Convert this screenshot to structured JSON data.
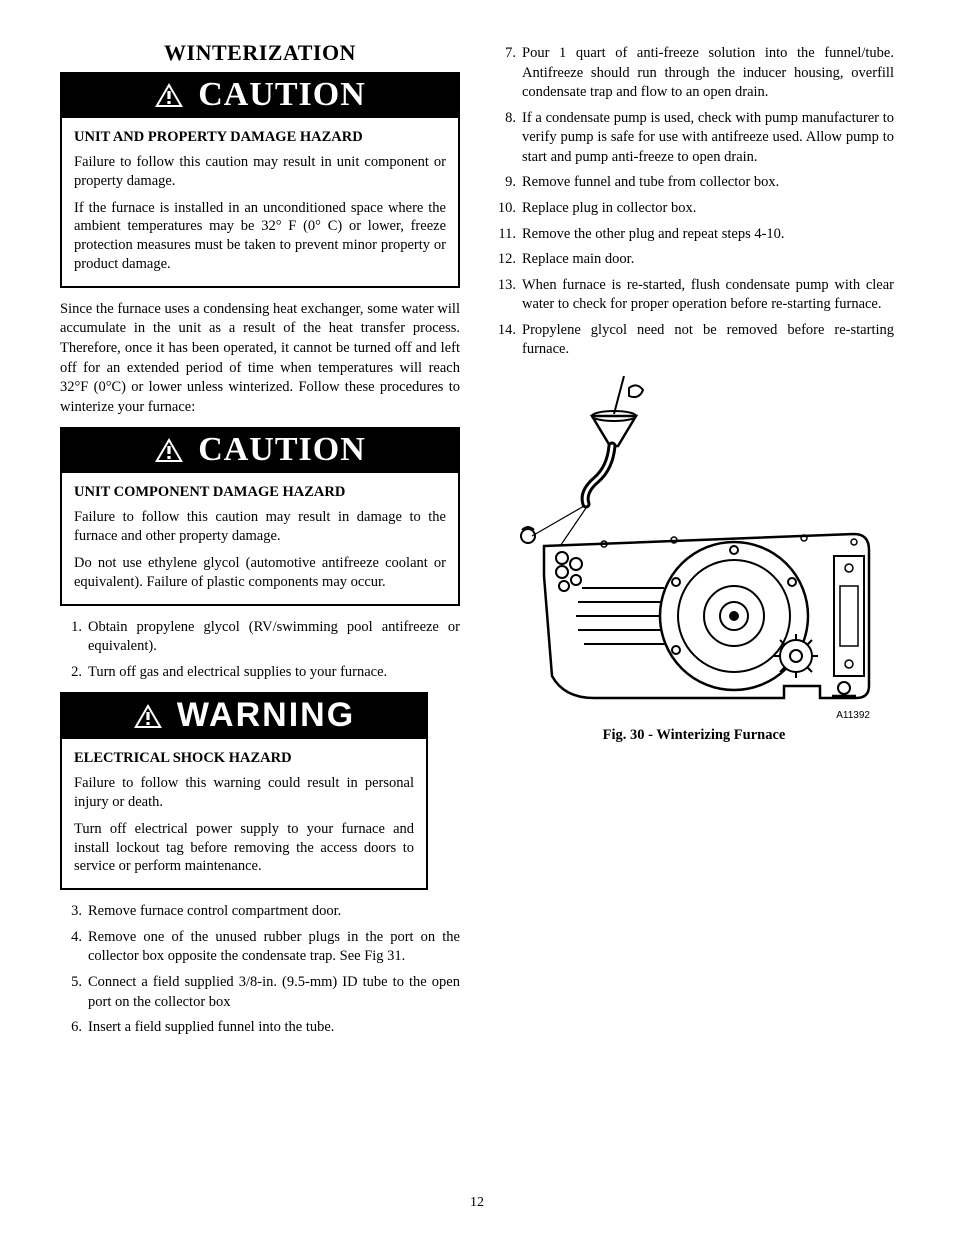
{
  "page_number": "12",
  "section_title": "WINTERIZATION",
  "caution1": {
    "banner": "CAUTION",
    "title": "UNIT AND PROPERTY DAMAGE HAZARD",
    "p1": "Failure to follow this caution may result in unit component or property damage.",
    "p2": "If the furnace is installed in an unconditioned space where the ambient temperatures may be 32° F (0° C) or lower, freeze protection measures must be taken to prevent minor property or product damage."
  },
  "intro_para": "Since the furnace uses a condensing heat exchanger, some water will accumulate in the unit as a result of the heat transfer process. Therefore, once it has been operated, it cannot be turned off and left off for an extended period of time when temperatures will reach 32°F (0°C) or lower unless winterized. Follow these procedures to winterize your furnace:",
  "caution2": {
    "banner": "CAUTION",
    "title": "UNIT COMPONENT DAMAGE HAZARD",
    "p1": "Failure to follow this caution may result in damage to the furnace and other property damage.",
    "p2": "Do not use ethylene glycol (automotive antifreeze coolant or equivalent). Failure of plastic components may occur."
  },
  "steps_a": [
    {
      "n": "1.",
      "t": "Obtain propylene glycol (RV/swimming pool antifreeze or equivalent)."
    },
    {
      "n": "2.",
      "t": "Turn off gas and electrical supplies to your furnace."
    }
  ],
  "warning": {
    "banner": "WARNING",
    "title": "ELECTRICAL SHOCK HAZARD",
    "p1": "Failure to follow this warning could result in personal injury or death.",
    "p2": "Turn off electrical power supply to your furnace and install lockout tag before removing the access doors to service or perform maintenance."
  },
  "steps_b": [
    {
      "n": "3.",
      "t": "Remove furnace control compartment door."
    },
    {
      "n": "4.",
      "t": "Remove one of the unused rubber plugs in the port on the collector box opposite the condensate trap. See Fig 31."
    },
    {
      "n": "5.",
      "t": "Connect a field supplied 3/8-in. (9.5-mm) ID tube to the open port on the collector box"
    },
    {
      "n": "6.",
      "t": "Insert a field supplied funnel into the tube."
    }
  ],
  "steps_c": [
    {
      "n": "7.",
      "t": "Pour 1 quart of anti-freeze solution into the funnel/tube. Antifreeze should run through the inducer housing, overfill condensate trap and flow to an open drain."
    },
    {
      "n": "8.",
      "t": "If a condensate pump is used, check with pump manufacturer to verify pump is safe for use with antifreeze used. Allow pump to start and pump anti-freeze to open drain."
    },
    {
      "n": "9.",
      "t": "Remove funnel and tube from collector box."
    },
    {
      "n": "10.",
      "t": "Replace plug in collector box."
    },
    {
      "n": "11.",
      "t": "Remove the other plug and repeat steps 4-10."
    },
    {
      "n": "12.",
      "t": "Replace main door."
    },
    {
      "n": "13.",
      "t": "When furnace is re-started, flush condensate pump with clear water to check for proper operation before re-starting furnace."
    },
    {
      "n": "14.",
      "t": "Propylene glycol need not be removed before re-starting furnace."
    }
  ],
  "figure": {
    "code": "A11392",
    "caption": "Fig. 30 - Winterizing Furnace"
  }
}
